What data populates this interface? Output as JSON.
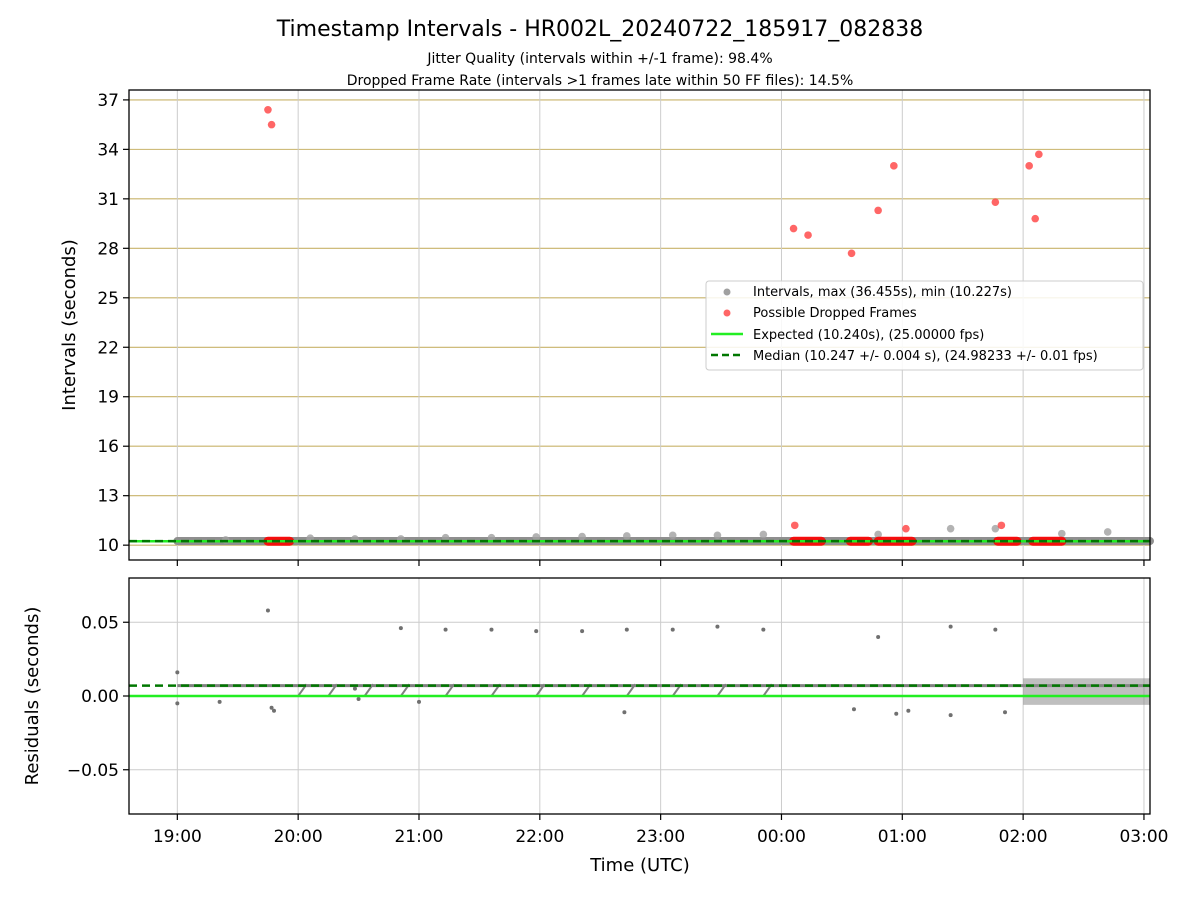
{
  "title": "Timestamp Intervals - HR002L_20240722_185917_082838",
  "subtitle_line1": "Jitter Quality (intervals within +/-1 frame): 98.4%",
  "subtitle_line2": "Dropped Frame Rate (intervals >1 frames late within 50 FF files): 14.5%",
  "chart_data": [
    {
      "type": "scatter",
      "panel": "intervals",
      "ylabel": "Intervals (seconds)",
      "ylim": [
        9.1,
        37.6
      ],
      "yticks": [
        10,
        13,
        16,
        19,
        22,
        25,
        28,
        31,
        34,
        37
      ],
      "xlim_hours": [
        18.6,
        27.05
      ],
      "grid": true,
      "legend_placement": "center-right",
      "legend": [
        "Intervals, max (36.455s), min (10.227s)",
        "Possible Dropped Frames",
        "Expected (10.240s), (25.00000 fps)",
        "Median (10.247 +/- 0.004 s), (24.98233 +/- 0.01 fps)"
      ],
      "series": [
        {
          "name": "Intervals, max (36.455s), min (10.227s)",
          "color": "#a0a0a0",
          "x": [
            19.4,
            20.1,
            20.47,
            20.85,
            21.22,
            21.6,
            21.97,
            22.35,
            22.72,
            23.1,
            23.47,
            23.85,
            24.8,
            25.4,
            25.77,
            26.32,
            26.7
          ],
          "y": [
            10.32,
            10.42,
            10.38,
            10.38,
            10.45,
            10.45,
            10.5,
            10.52,
            10.56,
            10.6,
            10.6,
            10.65,
            10.65,
            11.0,
            11.0,
            10.7,
            10.8
          ]
        },
        {
          "name": "Possible Dropped Frames",
          "color": "#ff3333",
          "x": [
            19.75,
            19.78,
            24.1,
            24.22,
            24.58,
            24.8,
            24.93,
            25.77,
            26.05,
            26.1,
            26.13,
            24.11,
            25.03,
            25.82
          ],
          "y": [
            36.4,
            35.5,
            29.2,
            28.8,
            27.7,
            30.3,
            33.0,
            30.8,
            33.0,
            29.8,
            33.7,
            11.2,
            11.0,
            11.2
          ]
        },
        {
          "name": "Possible Dropped Frames clusters",
          "color": "#ff0000",
          "x_ranges": [
            [
              19.75,
              19.93
            ],
            [
              24.1,
              24.33
            ],
            [
              24.57,
              24.72
            ],
            [
              24.8,
              25.08
            ],
            [
              25.79,
              25.95
            ],
            [
              26.08,
              26.32
            ]
          ],
          "y": 10.24
        },
        {
          "name": "Expected (10.240s), (25.00000 fps)",
          "color": "#22ee22",
          "y": 10.24
        },
        {
          "name": "Median (10.247 +/- 0.004 s), (24.98233 +/- 0.01 fps)",
          "color": "#007700",
          "y": 10.247
        }
      ]
    },
    {
      "type": "scatter",
      "panel": "residuals",
      "ylabel": "Residuals (seconds)",
      "xlabel": "Time (UTC)",
      "ylim": [
        -0.08,
        0.08
      ],
      "yticks": [
        -0.05,
        0.0,
        0.05
      ],
      "ytick_labels": [
        "−0.05",
        "0.00",
        "0.05"
      ],
      "xticks_hours": [
        19,
        20,
        21,
        22,
        23,
        24,
        25,
        26,
        27
      ],
      "xtick_labels": [
        "19:00",
        "20:00",
        "21:00",
        "22:00",
        "23:00",
        "00:00",
        "01:00",
        "02:00",
        "03:00"
      ],
      "grid": true,
      "series": [
        {
          "name": "Residuals",
          "color": "#707070",
          "x": [
            19.0,
            19.0,
            19.35,
            19.75,
            20.47,
            20.85,
            21.22,
            21.6,
            21.97,
            22.35,
            22.72,
            23.1,
            23.47,
            23.85,
            24.8,
            25.4,
            25.77,
            19.78,
            19.8,
            20.5,
            21.0,
            22.7,
            24.6,
            24.95,
            25.05,
            25.4,
            25.85
          ],
          "y": [
            0.016,
            -0.005,
            -0.004,
            0.058,
            0.005,
            0.046,
            0.045,
            0.045,
            0.044,
            0.044,
            0.045,
            0.045,
            0.047,
            0.045,
            0.04,
            0.047,
            0.045,
            -0.008,
            -0.01,
            -0.002,
            -0.004,
            -0.011,
            -0.009,
            -0.012,
            -0.01,
            -0.013,
            -0.011
          ]
        },
        {
          "name": "Expected",
          "color": "#22ee22",
          "y": 0.0
        },
        {
          "name": "Median",
          "color": "#007700",
          "y": 0.007
        }
      ]
    }
  ]
}
